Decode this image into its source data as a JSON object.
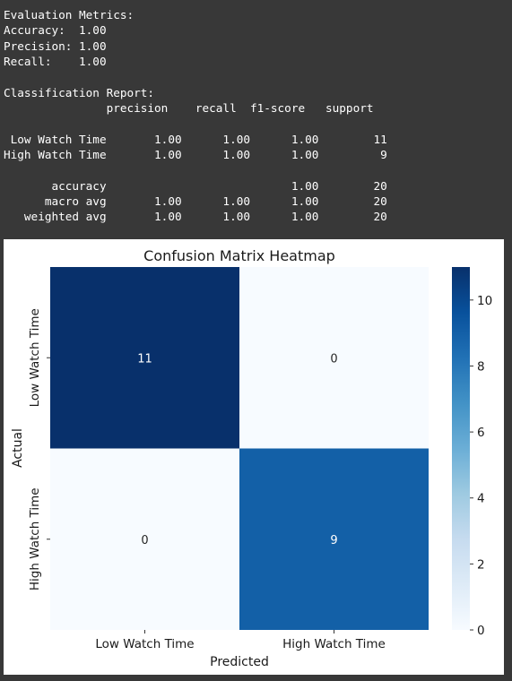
{
  "output": {
    "lines": [
      "Evaluation Metrics:",
      "Accuracy:  1.00",
      "Precision: 1.00",
      "Recall:    1.00",
      "",
      "Classification Report:",
      "               precision    recall  f1-score   support",
      "",
      " Low Watch Time       1.00      1.00      1.00        11",
      "High Watch Time       1.00      1.00      1.00         9",
      "",
      "       accuracy                           1.00        20",
      "      macro avg       1.00      1.00      1.00        20",
      "   weighted avg       1.00      1.00      1.00        20"
    ]
  },
  "chart_data": {
    "type": "heatmap",
    "title": "Confusion Matrix Heatmap",
    "xlabel": "Predicted",
    "ylabel": "Actual",
    "x_categories": [
      "Low Watch Time",
      "High Watch Time"
    ],
    "y_categories": [
      "Low Watch Time",
      "High Watch Time"
    ],
    "values": [
      [
        11,
        0
      ],
      [
        0,
        9
      ]
    ],
    "colormap": "Blues",
    "colorbar": {
      "range": [
        0,
        11
      ],
      "ticks": [
        0,
        2,
        4,
        6,
        8,
        10
      ]
    },
    "cell_colors": {
      "low": "#f7fbff",
      "high": "#08306b"
    }
  }
}
